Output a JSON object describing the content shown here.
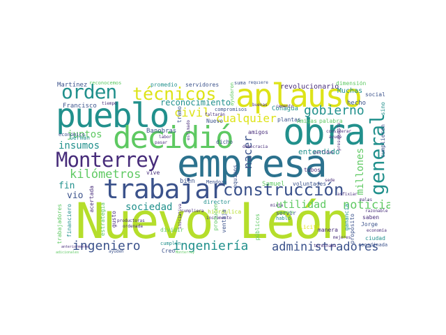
{
  "palette": {
    "teal": "#21908c",
    "green": "#5ec962",
    "lime": "#b5de2b",
    "yellow": "#dde318",
    "blue": "#3b528b",
    "navy": "#2c728e",
    "purple": "#440154",
    "violet": "#472c7a",
    "mint": "#35b779"
  },
  "words": {
    "nuevo_leon": "Nuevo León",
    "empresa": "empresa",
    "obra": "obra",
    "aplauso": "aplauso",
    "pueblo": "pueblo",
    "decidio": "decidió",
    "trabajar": "trabajar",
    "monterrey": "Monterrey",
    "construccion": "construcción",
    "orden": "orden",
    "tecnicos": "técnicos",
    "general": "general",
    "gobierno": "gobierno",
    "civil": "civil",
    "cualquier": "cualquier",
    "kilometros": "kilómetros",
    "ingeniero": "ingeniero",
    "ingenieria": "ingeniería",
    "administradores": "administradores",
    "noticias": "noticias",
    "utilidad": "utilidad",
    "sociedad": "sociedad",
    "nacer": "nacer",
    "millones": "millones",
    "juntos": "juntos",
    "insumos": "insumos",
    "fin": "fin",
    "vio": "vio",
    "reconocimiento": "reconocimiento",
    "revolucionario": "revolucionario",
    "entendido": "entendido",
    "martinez": "Martínez",
    "francisco": "Francisco",
    "muchas": "Muchas",
    "hecho": "hecho",
    "conagua": "Conagua",
    "banobras": "Banobras",
    "german": "Germán",
    "servidores": "servidores",
    "promedio": "promedio",
    "reconocemos": "reconocemos",
    "compromisos": "compromisos",
    "suma": "suma",
    "dimension": "dimensión",
    "amigas": "Amigas",
    "palabra": "palabra",
    "plantas": "plantas",
    "nuevo": "Nuevo",
    "amigos": "amigos",
    "dicho": "dicho",
    "tubos": "tubos",
    "samuel": "Samuel",
    "voluntades": "voluntades",
    "bien": "bien",
    "mendoza": "Mendoza",
    "director": "director",
    "hidraulica": "hidráulica",
    "gusto": "gusto",
    "acertada": "acertada",
    "estrategia": "estrategia",
    "dividir": "dividir",
    "cumplen": "cumplen",
    "creo": "Creo",
    "trabajadores": "trabajadores",
    "financiero": "financiero",
    "economico": "económico",
    "jorge": "Jorge",
    "saben": "saben",
    "ciudad": "ciudad",
    "coordinada": "coordinada",
    "servir": "servir",
    "hablo": "habló",
    "licita": "licita",
    "manera": "manera",
    "publicos": "públicos",
    "producen": "producen",
    "ganancia": "ganancia",
    "proposito": "propósito",
    "cumplieron": "cumplieron",
    "sino": "sino",
    "social": "social",
    "vive": "vive",
    "tramo": "tramo",
    "equipos": "equipos",
    "ventaja": "ventaja",
    "requiere": "requiere",
    "ayudaron": "ayudaron",
    "faltaran": "faltarán",
    "buenas": "buenas",
    "considerar": "considerar",
    "ayudo": "ayudó",
    "presupuesto": "presupuesto",
    "democracia": "democracia",
    "partidas": "partidas",
    "sede": "sede",
    "mixta": "mixta",
    "avance": "avance",
    "asfixiar": "asfixiar",
    "razonable": "razonable",
    "economia": "economía",
    "mejores": "mejores",
    "terminaba": "terminaba",
    "anteriormente": "anteriormente",
    "adicionales": "adicionales",
    "ayuden": "ayuden",
    "productoras": "productoras",
    "ordenada": "ordenada",
    "cumpliera": "cumpliera",
    "incremento": "incremento",
    "estimado": "estimado",
    "labor": "labor",
    "pasar": "pasar",
    "tiempo": "tiempo",
    "cemento": "cemento",
    "malas": "malas",
    "iniciativa": "iniciativa",
    "conducta": "conducta",
    "empresarial": "empresarial",
    "nacional": "nacional",
    "ganar": "ganar",
    "sistemas": "sistemas",
    "empresas": "empresas",
    "monterrey_small": "Monterrey"
  }
}
